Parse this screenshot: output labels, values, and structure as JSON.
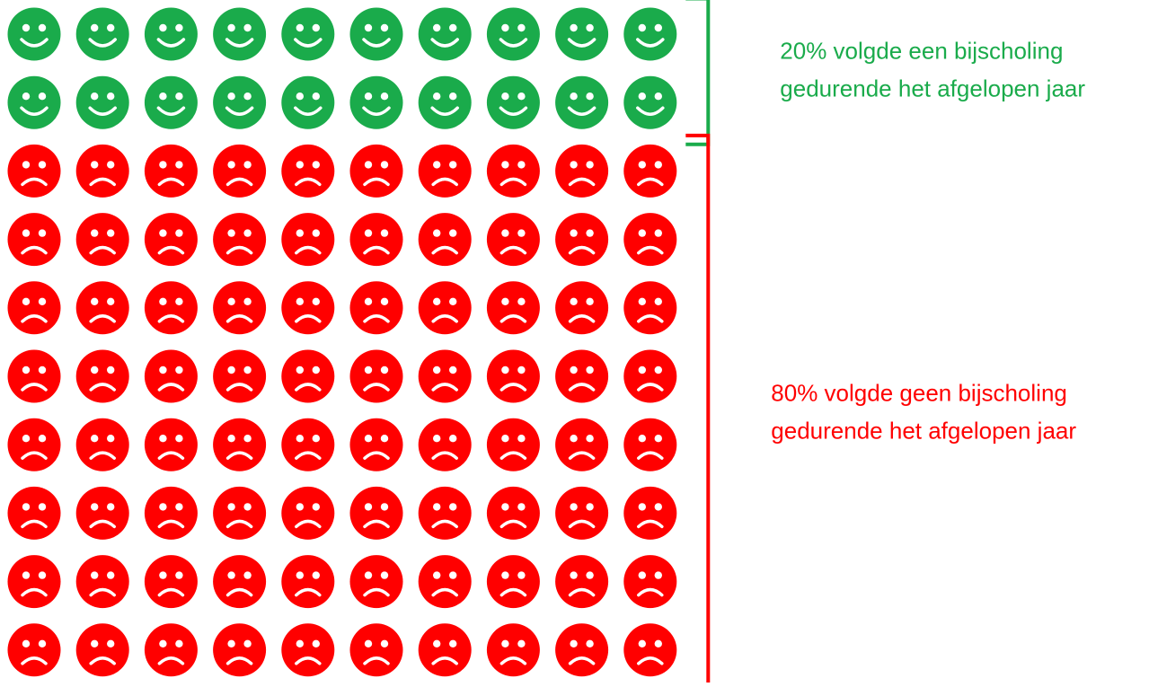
{
  "chart_data": {
    "type": "pictogram",
    "columns": 10,
    "series": [
      {
        "name": [
          "20% volgde een bijscholing",
          "gedurende het afgelopen jaar"
        ],
        "color": "#1aab4b",
        "face": "smile",
        "value": 20
      },
      {
        "name": [
          "80% volgde geen bijscholing",
          "gedurende het afgelopen jaar"
        ],
        "color": "#ff0000",
        "face": "frown",
        "value": 80
      }
    ]
  }
}
